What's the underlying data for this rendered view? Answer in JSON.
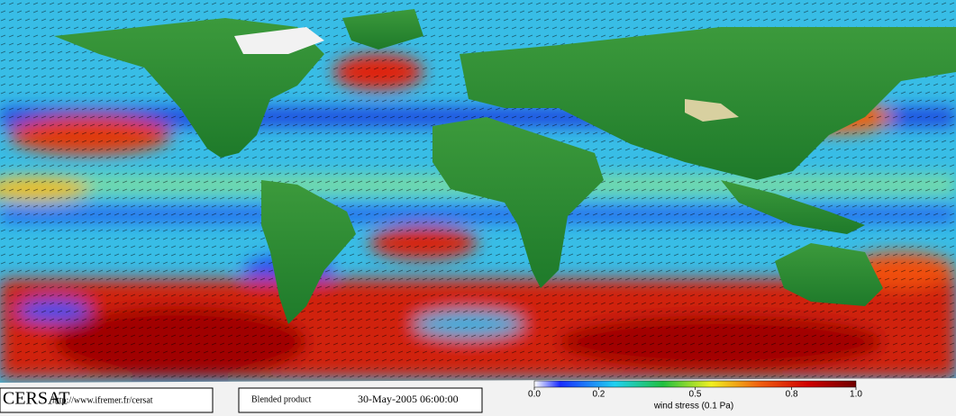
{
  "footer": {
    "logo": "CERSAT",
    "url": "http://www.ifremer.fr/cersat",
    "product": "Blended product",
    "date": "30-May-2005 06:00:00"
  },
  "colorbar": {
    "label": "wind stress (0.1 Pa)",
    "lim": [
      0,
      1
    ],
    "ticks": [
      {
        "value": 0,
        "label": "0.0"
      },
      0.2,
      0.5,
      0.8,
      {
        "value": 1,
        "label": "1.0"
      }
    ]
  }
}
